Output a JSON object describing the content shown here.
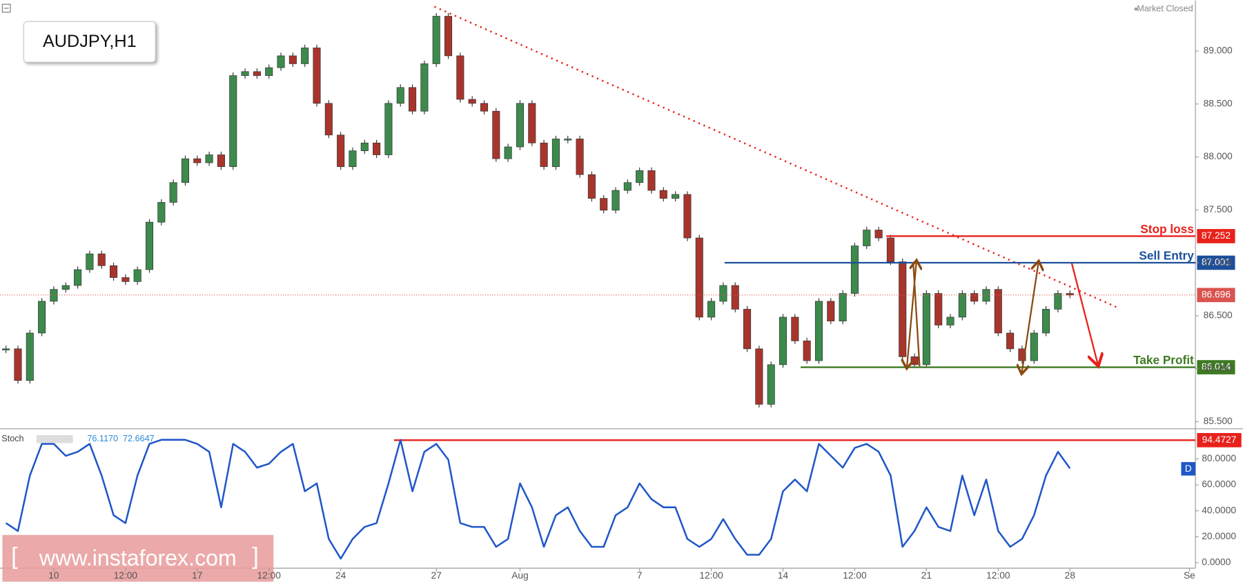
{
  "chart_data": {
    "type": "candlestick",
    "title": "AUDJPY,H1",
    "status": "Market Closed",
    "up_color": "#3c8a4c",
    "down_color": "#a8352c",
    "categories": [
      null,
      null,
      null,
      null,
      "10",
      null,
      null,
      null,
      null,
      null,
      "12:00",
      null,
      null,
      null,
      null,
      null,
      "17",
      null,
      null,
      null,
      null,
      null,
      "12:00",
      null,
      null,
      null,
      null,
      null,
      "24",
      null,
      null,
      null,
      null,
      null,
      null,
      null,
      "27",
      null,
      null,
      null,
      null,
      null,
      null,
      "Aug",
      null,
      null,
      null,
      null,
      null,
      null,
      null,
      null,
      null,
      "7",
      null,
      null,
      null,
      null,
      null,
      "12:00",
      null,
      null,
      null,
      null,
      null,
      "14",
      null,
      null,
      null,
      null,
      null,
      "12:00",
      null,
      null,
      null,
      null,
      null,
      "21",
      null,
      null,
      null,
      null,
      null,
      "12:00",
      null,
      null,
      null,
      null,
      null,
      "28",
      null,
      null,
      null,
      null,
      null,
      null,
      null,
      null,
      null,
      "Se"
    ],
    "close": [
      86.188,
      85.889,
      86.337,
      86.637,
      86.749,
      86.786,
      86.936,
      87.085,
      86.973,
      86.861,
      86.823,
      86.936,
      87.384,
      87.571,
      87.758,
      87.983,
      87.945,
      88.02,
      87.908,
      88.768,
      88.806,
      88.768,
      88.843,
      88.955,
      88.88,
      89.03,
      88.506,
      88.207,
      87.908,
      88.058,
      88.132,
      88.02,
      88.506,
      88.656,
      88.432,
      88.88,
      89.329,
      88.955,
      88.544,
      88.506,
      88.432,
      87.983,
      88.095,
      88.506,
      88.132,
      87.908,
      88.17,
      88.17,
      87.833,
      87.609,
      87.497,
      87.684,
      87.758,
      87.871,
      87.684,
      87.609,
      87.646,
      87.235,
      86.487,
      86.637,
      86.786,
      86.562,
      86.188,
      85.664,
      86.038,
      86.487,
      86.263,
      86.076,
      86.637,
      86.45,
      86.711,
      87.16,
      87.31,
      87.235,
      87.01,
      86.113,
      86.038,
      86.711,
      86.412,
      86.487,
      86.711,
      86.637,
      86.749,
      86.337,
      86.188,
      86.076,
      86.337,
      86.562,
      86.711,
      86.696,
      null,
      null,
      null,
      null,
      null,
      null,
      null,
      null,
      null,
      null
    ],
    "ylim": [
      85.44,
      89.479
    ],
    "yticks": [
      {
        "value": 85.5,
        "label": "85.500"
      },
      {
        "value": 86,
        "label": "86.000"
      },
      {
        "value": 86.5,
        "label": "86.500"
      },
      {
        "value": 87,
        "label": "87.000"
      },
      {
        "value": 87.5,
        "label": "87.500"
      },
      {
        "value": 88,
        "label": "88.000"
      },
      {
        "value": 88.5,
        "label": "88.500"
      },
      {
        "value": 89,
        "label": "89.000"
      }
    ],
    "levels": [
      {
        "name": "Stop loss",
        "value": 87.252,
        "label": "87.252",
        "color": "#e8211b"
      },
      {
        "name": "Sell Entry",
        "value": 87.001,
        "label": "87.001",
        "color": "#1c4f9c"
      },
      {
        "name": "Take Profit",
        "value": 86.014,
        "label": "86.014",
        "color": "#3d7a22"
      }
    ],
    "current_price": {
      "value": 86.696,
      "label": "86.696",
      "color": "#d9534f"
    },
    "stoch": {
      "name": "Stoch",
      "color": "#1f56c8",
      "legend_values": [
        {
          "value": 76.117,
          "label": "76.1170"
        },
        {
          "value": 72.6647,
          "label": "72.6647"
        }
      ],
      "values": [
        30.5,
        24.4,
        67.2,
        91.6,
        91.6,
        82.4,
        85.5,
        91.6,
        67.2,
        36.6,
        30.5,
        67.2,
        91.6,
        94.7,
        94.7,
        94.7,
        91.6,
        85.5,
        42.7,
        91.6,
        85.5,
        73.3,
        76.3,
        85.5,
        91.6,
        55.0,
        61.1,
        18.3,
        3.1,
        18.3,
        27.5,
        30.5,
        61.1,
        94.7,
        55.0,
        85.5,
        91.6,
        79.4,
        30.5,
        27.5,
        27.5,
        12.2,
        18.3,
        61.1,
        42.7,
        12.2,
        36.6,
        42.7,
        24.4,
        12.2,
        12.2,
        36.6,
        42.7,
        61.1,
        48.9,
        42.7,
        42.7,
        18.3,
        12.2,
        18.3,
        33.6,
        18.3,
        6.1,
        6.1,
        18.3,
        55.0,
        64.1,
        55.0,
        91.6,
        82.4,
        73.3,
        88.5,
        91.6,
        85.5,
        67.2,
        12.2,
        24.4,
        42.7,
        27.5,
        24.4,
        67.2,
        36.6,
        64.1,
        24.4,
        12.2,
        18.3,
        36.6,
        67.2,
        85.5,
        72.7,
        null,
        null,
        null,
        null,
        null,
        null,
        null,
        null,
        null,
        null
      ],
      "ylim": [
        -4.3,
        102
      ],
      "yticks": [
        {
          "value": 0,
          "label": "0.0000"
        },
        {
          "value": 20,
          "label": "20.0000"
        },
        {
          "value": 40,
          "label": "40.0000"
        },
        {
          "value": 60,
          "label": "60.0000"
        },
        {
          "value": 80,
          "label": "80.0000"
        }
      ],
      "level": {
        "value": 94.4727,
        "label": "94.4727",
        "color": "#e8211b"
      },
      "badge": "D"
    },
    "watermark": "www.instaforex.com"
  }
}
